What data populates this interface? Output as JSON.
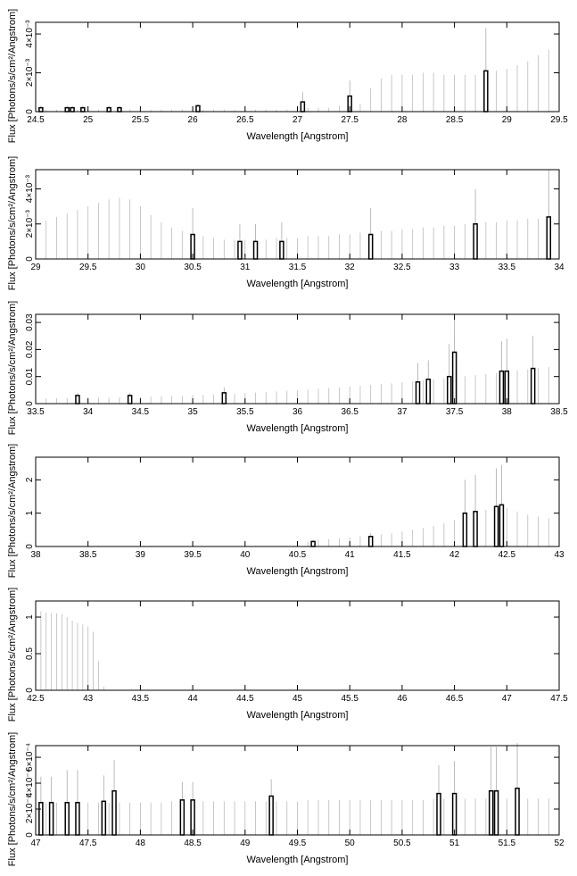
{
  "chart_data": [
    {
      "type": "bar",
      "xlabel": "Wavelength [Angstrom]",
      "ylabel": "Flux [Photons/s/cm²/Angstrom]",
      "xlim": [
        24.5,
        29.5
      ],
      "xticks": [
        24.5,
        25,
        25.5,
        26,
        26.5,
        27,
        27.5,
        28,
        28.5,
        29,
        29.5
      ],
      "ylim": [
        0,
        0.0046
      ],
      "yticks": [
        0,
        {
          "value": 0.002,
          "label": "2×10⁻³"
        },
        {
          "value": 0.004,
          "label": "4×10⁻³"
        }
      ],
      "series": [
        {
          "color": "#bbbbbb",
          "x": [
            24.5,
            24.6,
            24.7,
            24.8,
            24.9,
            25,
            25.1,
            25.2,
            25.3,
            25.4,
            25.5,
            25.6,
            25.7,
            25.8,
            25.9,
            26,
            26.1,
            26.2,
            26.3,
            26.4,
            26.5,
            26.6,
            26.7,
            26.8,
            26.9,
            27,
            27.1,
            27.2,
            27.3,
            27.4,
            27.5,
            27.6,
            27.7,
            27.8,
            27.9,
            28,
            28.1,
            28.2,
            28.3,
            28.4,
            28.5,
            28.6,
            28.7,
            28.8,
            28.9,
            29,
            29.1,
            29.2,
            29.3,
            29.4,
            29.5
          ],
          "values": [
            0.0001,
            0.0001,
            0.0001,
            0.0001,
            0.0001,
            0.0001,
            0.0001,
            0.0001,
            0.0001,
            0.0001,
            0.0001,
            0.0001,
            0.0001,
            0.0001,
            0.0001,
            0.0001,
            0.0001,
            0.0001,
            0.0001,
            0.0001,
            0.0001,
            0.0001,
            0.0001,
            0.0001,
            0.0001,
            0.0001,
            0.0002,
            0.0002,
            0.0002,
            0.0003,
            0.0003,
            0.0004,
            0.0012,
            0.0017,
            0.0019,
            0.0019,
            0.0019,
            0.002,
            0.002,
            0.0019,
            0.0019,
            0.0019,
            0.0019,
            0.002,
            0.0021,
            0.0022,
            0.0024,
            0.0026,
            0.0029,
            0.0032,
            0.0035
          ]
        },
        {
          "color": "#000000",
          "x": [
            24.55,
            24.8,
            24.85,
            24.95,
            25.2,
            25.3,
            26.05,
            27.05,
            27.5,
            28.8
          ],
          "values": [
            0.0002,
            0.0002,
            0.0002,
            0.0002,
            0.0002,
            0.0002,
            0.0003,
            0.0005,
            0.0008,
            0.0021
          ],
          "errors": [
            0.0001,
            0.0001,
            0.0001,
            0.0001,
            0.0001,
            0.0001,
            0.0001,
            0.0005,
            0.0008,
            0.0022
          ]
        }
      ]
    },
    {
      "type": "bar",
      "xlabel": "Wavelength [Angstrom]",
      "ylabel": "Flux [Photons/s/cm²/Angstrom]",
      "xlim": [
        29,
        34
      ],
      "xticks": [
        29,
        29.5,
        30,
        30.5,
        31,
        31.5,
        32,
        32.5,
        33,
        33.5,
        34
      ],
      "ylim": [
        0,
        0.0051
      ],
      "yticks": [
        0,
        {
          "value": 0.002,
          "label": "2×10⁻³"
        },
        {
          "value": 0.004,
          "label": "4×10⁻³"
        }
      ],
      "series": [
        {
          "color": "#bbbbbb",
          "x": [
            29,
            29.1,
            29.2,
            29.3,
            29.4,
            29.5,
            29.6,
            29.7,
            29.8,
            29.9,
            30,
            30.1,
            30.2,
            30.3,
            30.4,
            30.5,
            30.6,
            30.7,
            30.8,
            30.9,
            31,
            31.1,
            31.2,
            31.3,
            31.4,
            31.5,
            31.6,
            31.7,
            31.8,
            31.9,
            32,
            32.1,
            32.2,
            32.3,
            32.4,
            32.5,
            32.6,
            32.7,
            32.8,
            32.9,
            33,
            33.1,
            33.2,
            33.3,
            33.4,
            33.5,
            33.6,
            33.7,
            33.8,
            33.9,
            34
          ],
          "values": [
            0.0021,
            0.0022,
            0.0024,
            0.0026,
            0.0028,
            0.003,
            0.0032,
            0.0034,
            0.0035,
            0.0034,
            0.003,
            0.0025,
            0.0021,
            0.0018,
            0.0016,
            0.0014,
            0.0013,
            0.0012,
            0.0011,
            0.0011,
            0.0011,
            0.0011,
            0.0011,
            0.0012,
            0.0012,
            0.0012,
            0.0013,
            0.0013,
            0.0013,
            0.0014,
            0.0014,
            0.0015,
            0.0015,
            0.0016,
            0.0016,
            0.0017,
            0.0017,
            0.0018,
            0.0018,
            0.0019,
            0.0019,
            0.002,
            0.002,
            0.0021,
            0.0021,
            0.0022,
            0.0022,
            0.0023,
            0.0023,
            0.0024,
            0.0025
          ]
        },
        {
          "color": "#000000",
          "x": [
            30.5,
            30.95,
            31.1,
            31.35,
            32.2,
            33.2,
            33.9
          ],
          "values": [
            0.0014,
            0.001,
            0.001,
            0.001,
            0.0014,
            0.002,
            0.0024
          ],
          "errors": [
            0.0015,
            0.001,
            0.001,
            0.0011,
            0.0015,
            0.002,
            0.0027
          ]
        }
      ]
    },
    {
      "type": "bar",
      "xlabel": "Wavelength [Angstrom]",
      "ylabel": "Flux [Photons/s/cm²/Angstrom]",
      "xlim": [
        33.5,
        38.5
      ],
      "xticks": [
        33.5,
        34,
        34.5,
        35,
        35.5,
        36,
        36.5,
        37,
        37.5,
        38,
        38.5
      ],
      "ylim": [
        0,
        0.033
      ],
      "yticks": [
        0,
        0.01,
        0.02,
        0.03
      ],
      "series": [
        {
          "color": "#bbbbbb",
          "x": [
            33.5,
            33.6,
            33.7,
            33.8,
            33.9,
            34,
            34.1,
            34.2,
            34.3,
            34.4,
            34.5,
            34.6,
            34.7,
            34.8,
            34.9,
            35,
            35.1,
            35.2,
            35.3,
            35.4,
            35.5,
            35.6,
            35.7,
            35.8,
            35.9,
            36,
            36.1,
            36.2,
            36.3,
            36.4,
            36.5,
            36.6,
            36.7,
            36.8,
            36.9,
            37,
            37.1,
            37.2,
            37.3,
            37.4,
            37.5,
            37.6,
            37.7,
            37.8,
            37.9,
            38,
            38.1,
            38.2,
            38.3,
            38.4,
            38.5
          ],
          "values": [
            0.002,
            0.002,
            0.002,
            0.002,
            0.0021,
            0.0021,
            0.0022,
            0.0022,
            0.0023,
            0.0024,
            0.0025,
            0.0026,
            0.0027,
            0.0028,
            0.0029,
            0.0031,
            0.0032,
            0.0034,
            0.0036,
            0.0037,
            0.0039,
            0.0041,
            0.0043,
            0.0045,
            0.0048,
            0.005,
            0.0052,
            0.0055,
            0.0058,
            0.006,
            0.0063,
            0.0066,
            0.0069,
            0.0072,
            0.0075,
            0.0079,
            0.0082,
            0.0086,
            0.0089,
            0.0093,
            0.0097,
            0.0101,
            0.0105,
            0.0109,
            0.0113,
            0.0117,
            0.0122,
            0.0126,
            0.0131,
            0.0135,
            0.014
          ]
        },
        {
          "color": "#000000",
          "x": [
            33.9,
            34.4,
            35.3,
            37.15,
            37.25,
            37.45,
            37.5,
            37.95,
            38,
            38.25
          ],
          "values": [
            0.003,
            0.003,
            0.004,
            0.008,
            0.009,
            0.01,
            0.019,
            0.012,
            0.012,
            0.013
          ],
          "errors": [
            0.001,
            0.001,
            0.002,
            0.007,
            0.007,
            0.012,
            0.013,
            0.011,
            0.012,
            0.012
          ]
        }
      ]
    },
    {
      "type": "bar",
      "xlabel": "Wavelength [Angstrom]",
      "ylabel": "Flux [Photons/s/cm²/Angstrom]",
      "xlim": [
        38,
        43
      ],
      "xticks": [
        38,
        38.5,
        39,
        39.5,
        40,
        40.5,
        41,
        41.5,
        42,
        42.5,
        43
      ],
      "ylim": [
        0,
        2.68
      ],
      "yticks": [
        0,
        1,
        2
      ],
      "series": [
        {
          "color": "#bbbbbb",
          "x": [
            38,
            38.1,
            38.2,
            38.3,
            38.4,
            38.5,
            38.6,
            38.7,
            38.8,
            38.9,
            39,
            39.1,
            39.2,
            39.3,
            39.4,
            39.5,
            39.6,
            39.7,
            39.8,
            39.9,
            40,
            40.1,
            40.2,
            40.3,
            40.4,
            40.5,
            40.6,
            40.7,
            40.8,
            40.9,
            41,
            41.1,
            41.2,
            41.3,
            41.4,
            41.5,
            41.6,
            41.7,
            41.8,
            41.9,
            42,
            42.1,
            42.2,
            42.3,
            42.4,
            42.5,
            42.6,
            42.7,
            42.8,
            42.9,
            43
          ],
          "values": [
            0.02,
            0.02,
            0.02,
            0.02,
            0.02,
            0.02,
            0.02,
            0.02,
            0.02,
            0.02,
            0.02,
            0.02,
            0.02,
            0.02,
            0.02,
            0.02,
            0.02,
            0.02,
            0.02,
            0.02,
            0.02,
            0.02,
            0.02,
            0.02,
            0.02,
            0.1,
            0.15,
            0.2,
            0.22,
            0.25,
            0.27,
            0.3,
            0.32,
            0.36,
            0.4,
            0.45,
            0.5,
            0.55,
            0.62,
            0.7,
            0.8,
            0.9,
            1.0,
            1.1,
            1.2,
            1.15,
            1.05,
            0.95,
            0.9,
            0.85,
            0.8
          ]
        },
        {
          "color": "#000000",
          "x": [
            40.65,
            41.2,
            42.1,
            42.2,
            42.4,
            42.45
          ],
          "values": [
            0.15,
            0.3,
            1.0,
            1.05,
            1.2,
            1.25
          ],
          "errors": [
            0.05,
            0.1,
            1.0,
            1.1,
            1.15,
            1.2
          ]
        }
      ]
    },
    {
      "type": "bar",
      "xlabel": "Wavelength [Angstrom]",
      "ylabel": "Flux [Photons/s/cm²/Angstrom]",
      "xlim": [
        42.5,
        47.5
      ],
      "xticks": [
        42.5,
        43,
        43.5,
        44,
        44.5,
        45,
        45.5,
        46,
        46.5,
        47,
        47.5
      ],
      "ylim": [
        0,
        1.22
      ],
      "yticks": [
        0,
        0.5,
        1
      ],
      "series": [
        {
          "color": "#bbbbbb",
          "x": [
            42.5,
            42.55,
            42.6,
            42.65,
            42.7,
            42.75,
            42.8,
            42.85,
            42.9,
            42.95,
            43,
            43.05,
            43.1,
            43.15
          ],
          "values": [
            1.1,
            1.08,
            1.06,
            1.05,
            1.05,
            1.04,
            1.0,
            0.95,
            0.92,
            0.9,
            0.87,
            0.8,
            0.4,
            0.05
          ]
        }
      ]
    },
    {
      "type": "bar",
      "xlabel": "Wavelength [Angstrom]",
      "ylabel": "Flux [Photons/s/cm²/Angstrom]",
      "xlim": [
        47,
        52
      ],
      "xticks": [
        47,
        47.5,
        48,
        48.5,
        49,
        49.5,
        50,
        50.5,
        51,
        51.5,
        52
      ],
      "ylim": [
        0,
        0.00069
      ],
      "yticks": [
        0,
        {
          "value": 0.0002,
          "label": "2×10⁻⁴"
        },
        {
          "value": 0.0004,
          "label": "4×10⁻⁴"
        },
        {
          "value": 0.0006,
          "label": "6×10⁻⁴"
        }
      ],
      "series": [
        {
          "color": "#bbbbbb",
          "x": [
            47,
            47.1,
            47.2,
            47.3,
            47.4,
            47.5,
            47.6,
            47.7,
            47.8,
            47.9,
            48,
            48.1,
            48.2,
            48.3,
            48.4,
            48.5,
            48.6,
            48.7,
            48.8,
            48.9,
            49,
            49.1,
            49.2,
            49.3,
            49.4,
            49.5,
            49.6,
            49.7,
            49.8,
            49.9,
            50,
            50.1,
            50.2,
            50.3,
            50.4,
            50.5,
            50.6,
            50.7,
            50.8,
            50.9,
            51,
            51.1,
            51.2,
            51.3,
            51.4,
            51.5,
            51.6,
            51.7,
            51.8,
            51.9,
            52
          ],
          "values": [
            0.00025,
            0.00025,
            0.00025,
            0.00025,
            0.00025,
            0.00025,
            0.00025,
            0.00025,
            0.00025,
            0.00025,
            0.00025,
            0.00025,
            0.00025,
            0.00026,
            0.00026,
            0.00026,
            0.00026,
            0.00026,
            0.00026,
            0.00026,
            0.00026,
            0.00026,
            0.00026,
            0.00026,
            0.00026,
            0.00026,
            0.00027,
            0.00027,
            0.00027,
            0.00027,
            0.00027,
            0.00027,
            0.00027,
            0.00027,
            0.00027,
            0.00027,
            0.00027,
            0.00027,
            0.00028,
            0.00028,
            0.00028,
            0.00028,
            0.00028,
            0.00028,
            0.00028,
            0.00028,
            0.00028,
            0.00028,
            0.00028,
            0.00028,
            0.00028
          ]
        },
        {
          "color": "#000000",
          "x": [
            47.05,
            47.15,
            47.3,
            47.4,
            47.65,
            47.75,
            48.4,
            48.5,
            49.25,
            50.85,
            51,
            51.35,
            51.4,
            51.6
          ],
          "values": [
            0.00025,
            0.00025,
            0.00025,
            0.00025,
            0.00026,
            0.00034,
            0.00027,
            0.00027,
            0.0003,
            0.00032,
            0.00032,
            0.00034,
            0.00034,
            0.00036
          ],
          "errors": [
            0.0002,
            0.0002,
            0.00025,
            0.00025,
            0.0002,
            0.00024,
            0.00014,
            0.00014,
            0.00013,
            0.00022,
            0.00025,
            0.00034,
            0.00034,
            0.00035
          ]
        }
      ]
    }
  ]
}
